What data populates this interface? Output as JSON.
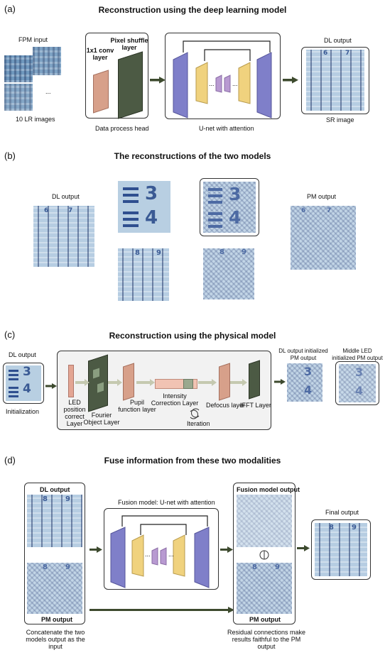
{
  "panel_a": {
    "letter": "(a)",
    "title": "Reconstruction using the deep learning model",
    "fpm_input": "FPM input",
    "ellipsis": "...",
    "lr_images": "10 LR images",
    "conv_label": "1x1 conv layer",
    "pixel_shuffle_label": "Pixel shuffle layer",
    "data_process_head": "Data process head",
    "unet_caption": "U-net with attention",
    "unet_dots": "...",
    "dl_output": "DL output",
    "sr_image": "SR image",
    "glyph_6": "6",
    "glyph_7": "7"
  },
  "panel_b": {
    "letter": "(b)",
    "title": "The reconstructions of the two models",
    "dl_output": "DL output",
    "pm_output": "PM output",
    "glyph_3": "3",
    "glyph_4": "4",
    "glyph_8": "8",
    "glyph_9": "9",
    "glyph_6": "6",
    "glyph_7": "7"
  },
  "panel_c": {
    "letter": "(c)",
    "title": "Reconstruction using the physical model",
    "dl_output": "DL output",
    "initialization": "Initialization",
    "led_layer": "LED position correct Layer",
    "fourier_layer": "Fourier Object Layer",
    "pupil_layer": "Pupil function layer",
    "intensity_layer": "Intensity Correction Layer",
    "iteration": "Iteration",
    "defocus_layer": "Defocus layer",
    "ifft_layer": "IFFT Layer",
    "dl_init_pm": "DL output initialized PM output",
    "middle_led_pm": "Middle LED initialized PM output",
    "glyph_3": "3",
    "glyph_4": "4"
  },
  "panel_d": {
    "letter": "(d)",
    "title": "Fuse information from these two modalities",
    "dl_output": "DL output",
    "pm_output": "PM output",
    "concat_caption": "Concatenate the two models output as the input",
    "fusion_model": "Fusion model: U-net with attention",
    "fusion_output": "Fusion model output",
    "residual_caption": "Residual connections make results faithful to the PM output",
    "final_output": "Final output",
    "unet_dots": "...",
    "glyph_8": "8",
    "glyph_9": "9"
  },
  "colors": {
    "purple": "#7f7fc9",
    "yellow": "#f0d27e",
    "small_purple": "#b89ad1",
    "conv_brown": "#d7a08a",
    "pixel_dark": "#4c5a44",
    "arrow": "#3d4a2e",
    "pale_arrow": "#c5c9b0"
  }
}
